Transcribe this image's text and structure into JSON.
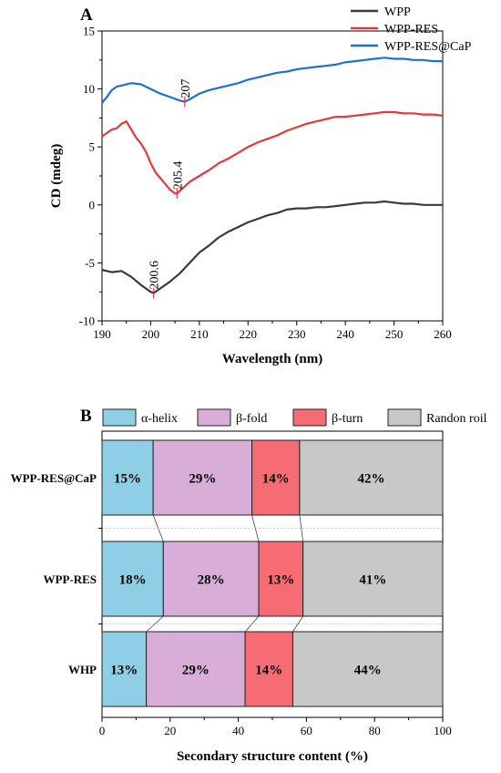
{
  "chart_data": [
    {
      "type": "line",
      "panel_label": "A",
      "xlabel": "Wavelength (nm)",
      "ylabel": "CD (mdeg)",
      "xlim": [
        190,
        260
      ],
      "ylim": [
        -10,
        15
      ],
      "xticks": [
        190,
        200,
        210,
        220,
        230,
        240,
        250,
        260
      ],
      "yticks": [
        -10,
        -5,
        0,
        5,
        10,
        15
      ],
      "legend_position": "top-right",
      "series": [
        {
          "name": "WPP",
          "color": "#3a3a3a",
          "x": [
            190,
            192,
            194,
            196,
            198,
            200,
            200.6,
            202,
            204,
            206,
            208,
            210,
            212,
            214,
            216,
            218,
            220,
            222,
            224,
            226,
            228,
            230,
            232,
            234,
            236,
            238,
            240,
            242,
            244,
            246,
            248,
            250,
            252,
            254,
            256,
            258,
            260
          ],
          "y": [
            -5.6,
            -5.8,
            -5.7,
            -6.2,
            -6.9,
            -7.5,
            -7.6,
            -7.2,
            -6.6,
            -5.9,
            -5.0,
            -4.1,
            -3.5,
            -2.8,
            -2.3,
            -1.9,
            -1.5,
            -1.2,
            -0.9,
            -0.7,
            -0.4,
            -0.3,
            -0.3,
            -0.2,
            -0.2,
            -0.1,
            0.0,
            0.1,
            0.2,
            0.2,
            0.3,
            0.2,
            0.1,
            0.1,
            0.0,
            0.0,
            0.0
          ]
        },
        {
          "name": "WPP-RES",
          "color": "#e8373a",
          "x": [
            190,
            191,
            192,
            193,
            194,
            195,
            196,
            197,
            198,
            199,
            200,
            201,
            202,
            203,
            204,
            205,
            205.4,
            206,
            207,
            208,
            210,
            212,
            214,
            216,
            218,
            220,
            222,
            224,
            226,
            228,
            230,
            232,
            234,
            236,
            238,
            240,
            242,
            244,
            246,
            248,
            250,
            252,
            254,
            256,
            258,
            260
          ],
          "y": [
            5.9,
            6.2,
            6.5,
            6.6,
            7.0,
            7.2,
            6.5,
            5.8,
            5.3,
            4.6,
            3.6,
            2.8,
            2.3,
            1.8,
            1.3,
            1.0,
            1.0,
            1.2,
            1.6,
            2.0,
            2.5,
            3.0,
            3.6,
            4.0,
            4.5,
            5.0,
            5.4,
            5.7,
            6.0,
            6.4,
            6.7,
            7.0,
            7.2,
            7.4,
            7.6,
            7.6,
            7.7,
            7.8,
            7.9,
            8.0,
            8.0,
            7.9,
            7.9,
            7.8,
            7.8,
            7.7
          ]
        },
        {
          "name": "WPP-RES@CaP",
          "color": "#1f6fd4",
          "x": [
            190,
            191,
            192,
            193,
            194,
            196,
            198,
            200,
            202,
            204,
            206,
            207,
            208,
            210,
            212,
            214,
            216,
            218,
            220,
            222,
            224,
            226,
            228,
            230,
            232,
            234,
            236,
            238,
            240,
            242,
            244,
            246,
            248,
            250,
            252,
            254,
            256,
            258,
            260
          ],
          "y": [
            8.8,
            9.3,
            9.9,
            10.2,
            10.3,
            10.5,
            10.4,
            10.0,
            9.6,
            9.3,
            9.0,
            8.9,
            9.1,
            9.6,
            9.9,
            10.1,
            10.3,
            10.5,
            10.8,
            11.0,
            11.2,
            11.4,
            11.5,
            11.7,
            11.8,
            11.9,
            12.0,
            12.1,
            12.3,
            12.4,
            12.5,
            12.6,
            12.7,
            12.6,
            12.6,
            12.5,
            12.5,
            12.4,
            12.4
          ]
        }
      ],
      "annotations": [
        {
          "text": "207",
          "x": 207,
          "y": 8.9,
          "series": "WPP-RES@CaP"
        },
        {
          "text": "205.4",
          "x": 205.4,
          "y": 1.0,
          "series": "WPP-RES"
        },
        {
          "text": "200.6",
          "x": 200.6,
          "y": -7.6,
          "series": "WPP"
        }
      ]
    },
    {
      "type": "bar",
      "subtype": "stacked-horizontal-percent",
      "panel_label": "B",
      "xlabel": "Secondary structure content (%)",
      "xlim": [
        0,
        100
      ],
      "xticks": [
        0,
        20,
        40,
        60,
        80,
        100
      ],
      "legend_position": "top",
      "categories": [
        "WPP-RES@CaP",
        "WPP-RES",
        "WHP"
      ],
      "series": [
        {
          "name": "α-helix",
          "color": "#8fcfe6",
          "values": [
            15,
            18,
            13
          ],
          "labels": [
            "15%",
            "18%",
            "13%"
          ]
        },
        {
          "name": "β-fold",
          "color": "#d8aed8",
          "values": [
            29,
            28,
            29
          ],
          "labels": [
            "29%",
            "28%",
            "29%"
          ]
        },
        {
          "name": "β-turn",
          "color": "#f56c74",
          "values": [
            14,
            13,
            14
          ],
          "labels": [
            "14%",
            "13%",
            "14%"
          ]
        },
        {
          "name": "Randon roil",
          "color": "#c8c8c8",
          "values": [
            42,
            41,
            44
          ],
          "labels": [
            "42%",
            "41%",
            "44%"
          ]
        }
      ]
    }
  ]
}
